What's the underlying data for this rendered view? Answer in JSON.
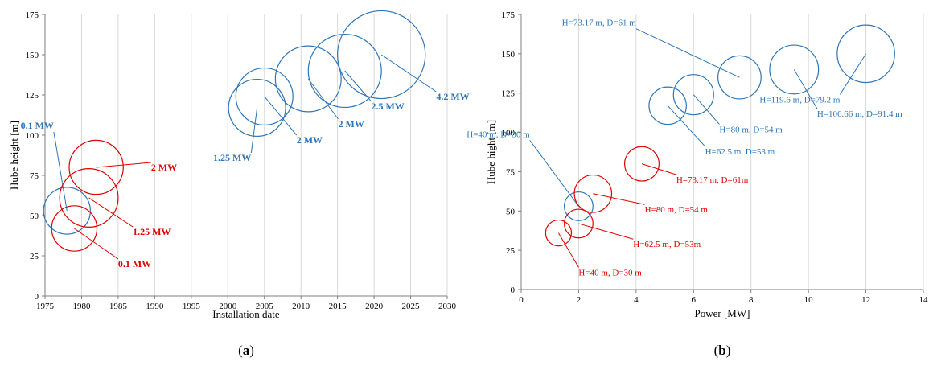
{
  "colors": {
    "blue": "#2e75b6",
    "red": "#e00000",
    "grid": "#d9d9d9",
    "axis": "#7f7f7f"
  },
  "chart_data": [
    {
      "type": "bubble",
      "caption": "a",
      "xlabel": "Installation date",
      "ylabel": "Hube height [m]",
      "xlim": [
        1975,
        2030
      ],
      "ylim": [
        0,
        175
      ],
      "xticks": [
        1975,
        1980,
        1985,
        1990,
        1995,
        2000,
        2005,
        2010,
        2015,
        2020,
        2025,
        2030
      ],
      "yticks": [
        0,
        25,
        50,
        75,
        100,
        125,
        150,
        175
      ],
      "grid": "vertical",
      "label_style": "bold",
      "series": [
        {
          "color": "blue",
          "points": [
            {
              "x": 1978,
              "y": 53,
              "r": 3.2,
              "label": "0.1 MW",
              "label_x": 1976.2,
              "label_y": 104
            },
            {
              "x": 2004,
              "y": 117,
              "r": 3.9,
              "label": "1.25 MW",
              "label_x": 2003.2,
              "label_y": 84
            },
            {
              "x": 2005,
              "y": 124,
              "r": 3.9,
              "label": "2 MW",
              "label_x": 2009.4,
              "label_y": 95
            },
            {
              "x": 2011,
              "y": 135,
              "r": 4.5,
              "label": "2 MW",
              "label_x": 2015.1,
              "label_y": 105
            },
            {
              "x": 2016,
              "y": 140,
              "r": 5.0,
              "label": "2.5 MW",
              "label_x": 2019.6,
              "label_y": 116
            },
            {
              "x": 2021,
              "y": 150,
              "r": 6.0,
              "label": "4.2 MW",
              "label_x": 2028.5,
              "label_y": 122
            }
          ]
        },
        {
          "color": "red",
          "points": [
            {
              "x": 1979,
              "y": 42,
              "r": 3.1,
              "label": "0.1 MW",
              "label_x": 1985,
              "label_y": 18
            },
            {
              "x": 1981,
              "y": 61,
              "r": 4.0,
              "label": "1.25 MW",
              "label_x": 1987,
              "label_y": 38
            },
            {
              "x": 1982,
              "y": 80,
              "r": 3.7,
              "label": "2 MW",
              "label_x": 1989.5,
              "label_y": 78
            }
          ]
        }
      ]
    },
    {
      "type": "bubble",
      "caption": "b",
      "xlabel": "Power [MW]",
      "ylabel": "Hube hight [m]",
      "xlim": [
        0,
        14
      ],
      "ylim": [
        0,
        175
      ],
      "xticks": [
        0,
        2,
        4,
        6,
        8,
        10,
        12,
        14
      ],
      "yticks": [
        0,
        25,
        50,
        75,
        100,
        125,
        150,
        175
      ],
      "grid": "vertical",
      "label_style": "plain",
      "series": [
        {
          "color": "blue",
          "points": [
            {
              "x": 2.0,
              "y": 53,
              "r": 0.5,
              "label": "H=40 m, D=30 m",
              "label_x": 0.3,
              "label_y": 97
            },
            {
              "x": 5.1,
              "y": 117,
              "r": 0.65,
              "label": "H=62.5 m, D=53 m",
              "label_x": 6.4,
              "label_y": 86
            },
            {
              "x": 6.0,
              "y": 124,
              "r": 0.7,
              "label": "H=80 m, D=54 m",
              "label_x": 6.9,
              "label_y": 100
            },
            {
              "x": 7.6,
              "y": 135,
              "r": 0.75,
              "label": "H=73.17 m, D=61 m",
              "label_x": 4.0,
              "label_y": 168
            },
            {
              "x": 9.5,
              "y": 140,
              "r": 0.85,
              "label": "H=106.66 m, D=91.4 m",
              "label_x": 10.3,
              "label_y": 110
            },
            {
              "x": 12.0,
              "y": 150,
              "r": 1.0,
              "label": "H=119.6 m, D=79.2 m",
              "label_x": 11.1,
              "label_y": 119
            }
          ]
        },
        {
          "color": "red",
          "points": [
            {
              "x": 1.3,
              "y": 36,
              "r": 0.45,
              "label": "H=40 m, D=30 m",
              "label_x": 2.0,
              "label_y": 9
            },
            {
              "x": 2.0,
              "y": 42,
              "r": 0.5,
              "label": "H=62.5 m, D=53m",
              "label_x": 3.9,
              "label_y": 27
            },
            {
              "x": 2.5,
              "y": 61,
              "r": 0.65,
              "label": "H=80 m, D=54 m",
              "label_x": 4.3,
              "label_y": 49
            },
            {
              "x": 4.2,
              "y": 80,
              "r": 0.6,
              "label": "H=73.17 m, D=61m",
              "label_x": 5.4,
              "label_y": 68
            }
          ]
        }
      ]
    }
  ]
}
